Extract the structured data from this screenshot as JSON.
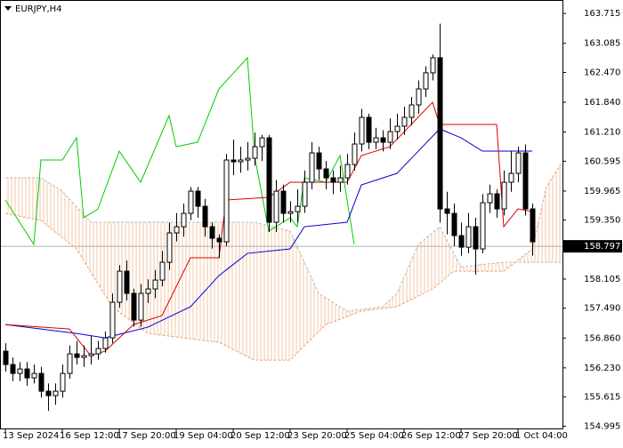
{
  "chart_data": {
    "type": "candlestick",
    "title": "EURJPY,H4",
    "current_price": {
      "value": 158.797,
      "label": "158.797"
    },
    "xlim": [
      -0.75,
      78.25
    ],
    "ylim": [
      154.95,
      164.0
    ],
    "yticks": [
      {
        "value": 163.715,
        "label": "163.715"
      },
      {
        "value": 163.085,
        "label": "163.085"
      },
      {
        "value": 162.47,
        "label": "162.470"
      },
      {
        "value": 161.84,
        "label": "161.840"
      },
      {
        "value": 161.21,
        "label": "161.210"
      },
      {
        "value": 160.595,
        "label": "160.595"
      },
      {
        "value": 159.965,
        "label": "159.965"
      },
      {
        "value": 159.35,
        "label": "159.350"
      },
      {
        "value": 158.72,
        "label": "158.720"
      },
      {
        "value": 158.105,
        "label": "158.105"
      },
      {
        "value": 157.49,
        "label": "157.490"
      },
      {
        "value": 156.86,
        "label": "156.860"
      },
      {
        "value": 156.23,
        "label": "156.230"
      },
      {
        "value": 155.615,
        "label": "155.615"
      },
      {
        "value": 154.995,
        "label": "154.995"
      }
    ],
    "xticks": [
      {
        "value": 0,
        "label": "13 Sep 2024"
      },
      {
        "value": 8,
        "label": "16 Sep 12:00"
      },
      {
        "value": 16,
        "label": "17 Sep 20:00"
      },
      {
        "value": 24,
        "label": "19 Sep 04:00"
      },
      {
        "value": 32,
        "label": "20 Sep 12:00"
      },
      {
        "value": 40,
        "label": "23 Sep 20:00"
      },
      {
        "value": 48,
        "label": "25 Sep 04:00"
      },
      {
        "value": 56,
        "label": "26 Sep 12:00"
      },
      {
        "value": 64,
        "label": "27 Sep 20:00"
      },
      {
        "value": 72,
        "label": "1 Oct 04:00"
      }
    ],
    "up_color": "#ffffff",
    "down_color": "#000000",
    "candles": {
      "open": [
        156.582,
        156.3,
        156.112,
        156.206,
        156.018,
        156.112,
        155.737,
        155.643,
        155.737,
        156.112,
        156.526,
        156.45,
        156.488,
        156.526,
        156.638,
        156.864,
        157.615,
        158.272,
        157.803,
        157.239,
        157.803,
        157.897,
        158.084,
        158.46,
        159.08,
        159.211,
        159.493,
        159.962,
        159.643,
        159.211,
        158.967,
        158.892,
        160.62,
        160.582,
        160.62,
        160.657,
        160.901,
        161.089,
        159.305,
        159.962,
        159.493,
        159.53,
        159.643,
        160.15,
        160.77,
        160.432,
        160.244,
        160.15,
        160.244,
        160.526,
        160.958,
        161.521,
        160.995,
        161.089,
        160.995,
        161.221,
        161.334,
        161.521,
        161.784,
        162.122,
        162.462,
        162.781,
        159.587,
        159.493,
        159.023,
        158.779,
        159.211,
        158.742,
        159.718,
        159.906,
        159.587,
        160.15,
        160.338,
        160.77,
        159.587
      ],
      "high": [
        156.75,
        156.45,
        156.35,
        156.35,
        156.3,
        156.25,
        155.9,
        155.9,
        156.3,
        156.7,
        156.8,
        156.7,
        156.9,
        156.8,
        157.0,
        157.8,
        158.4,
        158.5,
        157.9,
        158.0,
        158.1,
        158.3,
        158.7,
        159.3,
        159.5,
        159.7,
        160.05,
        160.05,
        159.8,
        159.3,
        159.05,
        160.75,
        161.05,
        160.9,
        161.0,
        161.2,
        161.15,
        161.15,
        160.2,
        160.1,
        159.75,
        160.0,
        160.4,
        161.0,
        160.9,
        160.6,
        160.4,
        160.5,
        160.75,
        161.2,
        161.7,
        161.6,
        161.3,
        161.25,
        161.5,
        161.6,
        161.75,
        161.95,
        162.3,
        162.6,
        162.85,
        163.5,
        159.95,
        159.7,
        159.3,
        159.5,
        159.4,
        159.9,
        160.1,
        160.0,
        160.4,
        160.8,
        160.9,
        160.95,
        159.7
      ],
      "low": [
        156.15,
        155.95,
        155.95,
        155.85,
        155.9,
        155.6,
        155.32,
        155.45,
        155.6,
        156.0,
        156.3,
        156.25,
        156.3,
        156.4,
        156.55,
        156.75,
        157.5,
        157.65,
        157.1,
        157.1,
        157.6,
        157.7,
        157.95,
        158.3,
        158.9,
        159.0,
        159.35,
        159.4,
        159.0,
        158.75,
        158.55,
        158.8,
        160.3,
        160.35,
        160.4,
        160.5,
        160.6,
        159.1,
        159.1,
        159.3,
        159.3,
        159.3,
        159.5,
        160.0,
        160.2,
        160.0,
        159.9,
        159.95,
        160.1,
        160.4,
        160.8,
        160.85,
        160.85,
        160.8,
        160.85,
        161.05,
        161.15,
        161.35,
        161.6,
        161.95,
        162.3,
        159.3,
        159.05,
        158.8,
        158.6,
        158.65,
        158.2,
        158.65,
        159.5,
        159.4,
        159.45,
        159.95,
        160.15,
        159.45,
        158.6
      ],
      "close": [
        156.3,
        156.112,
        156.206,
        156.018,
        156.112,
        155.737,
        155.643,
        155.737,
        156.112,
        156.526,
        156.45,
        156.488,
        156.526,
        156.638,
        156.864,
        157.615,
        158.272,
        157.803,
        157.239,
        157.803,
        157.897,
        158.084,
        158.46,
        159.08,
        159.211,
        159.493,
        159.962,
        159.643,
        159.211,
        158.967,
        158.892,
        160.62,
        160.582,
        160.62,
        160.657,
        160.901,
        161.089,
        159.305,
        159.962,
        159.493,
        159.53,
        159.643,
        160.15,
        160.77,
        160.432,
        160.244,
        160.15,
        160.244,
        160.526,
        160.958,
        161.521,
        160.995,
        161.089,
        160.995,
        161.221,
        161.334,
        161.521,
        161.784,
        162.122,
        162.462,
        162.781,
        159.587,
        159.493,
        159.023,
        158.779,
        159.211,
        158.742,
        159.718,
        159.906,
        159.587,
        160.15,
        160.338,
        160.77,
        159.587,
        158.892
      ]
    },
    "cloud_color": "#f0b890",
    "series": [
      {
        "color": "#e8a070",
        "dashed": true,
        "cloud": true,
        "x": [
          0,
          5,
          10,
          15,
          20,
          25,
          30,
          35,
          40,
          45,
          50,
          55,
          60,
          63,
          66,
          70,
          74,
          76,
          78
        ],
        "values": [
          159.493,
          159.343,
          158.742,
          157.521,
          156.957,
          156.864,
          156.77,
          156.394,
          156.394,
          157.145,
          157.427,
          157.521,
          157.897,
          158.272,
          158.272,
          158.272,
          158.742,
          160.056,
          160.526
        ]
      },
      {
        "color": "#b8b8b8",
        "dashed": true,
        "cloud": true,
        "x": [
          0,
          5,
          8,
          12,
          15,
          25,
          35,
          40,
          44,
          48,
          53,
          55,
          58,
          61,
          64,
          70,
          78
        ],
        "values": [
          160.244,
          160.244,
          159.962,
          159.305,
          159.305,
          159.305,
          159.305,
          159.117,
          157.803,
          157.427,
          157.521,
          157.803,
          158.836,
          159.211,
          158.366,
          158.46,
          158.46
        ]
      },
      {
        "color": "#00cc00",
        "x": [
          0,
          4,
          5,
          8,
          10,
          11,
          13,
          16,
          19,
          23,
          24,
          27,
          30,
          34,
          35,
          37,
          40,
          41,
          42,
          45,
          47,
          49
        ],
        "values": [
          159.775,
          158.836,
          160.62,
          160.62,
          161.089,
          159.399,
          159.587,
          160.807,
          160.15,
          161.559,
          160.901,
          160.995,
          162.122,
          162.781,
          160.714,
          159.117,
          159.399,
          159.211,
          160.244,
          160.15,
          160.714,
          158.836
        ]
      },
      {
        "color": "#0000cc",
        "x": [
          0,
          10,
          14,
          20,
          26,
          30,
          34,
          40,
          42,
          48,
          50,
          55,
          58,
          61,
          64,
          67,
          74
        ],
        "values": [
          157.145,
          156.957,
          156.864,
          157.089,
          157.521,
          158.178,
          158.648,
          158.742,
          159.211,
          159.305,
          160.094,
          160.338,
          160.807,
          161.277,
          161.089,
          160.807,
          160.807
        ]
      },
      {
        "color": "#dd0000",
        "x": [
          0,
          9,
          12,
          14,
          18,
          22,
          26,
          30,
          31,
          37,
          40,
          48,
          50,
          54,
          57,
          60,
          61,
          69,
          70,
          72,
          74
        ],
        "values": [
          157.145,
          157.051,
          156.488,
          156.582,
          157.145,
          157.333,
          158.554,
          158.554,
          159.775,
          159.831,
          160.15,
          160.15,
          160.714,
          160.901,
          161.371,
          161.84,
          161.371,
          161.371,
          159.211,
          159.587,
          159.53
        ]
      }
    ]
  }
}
